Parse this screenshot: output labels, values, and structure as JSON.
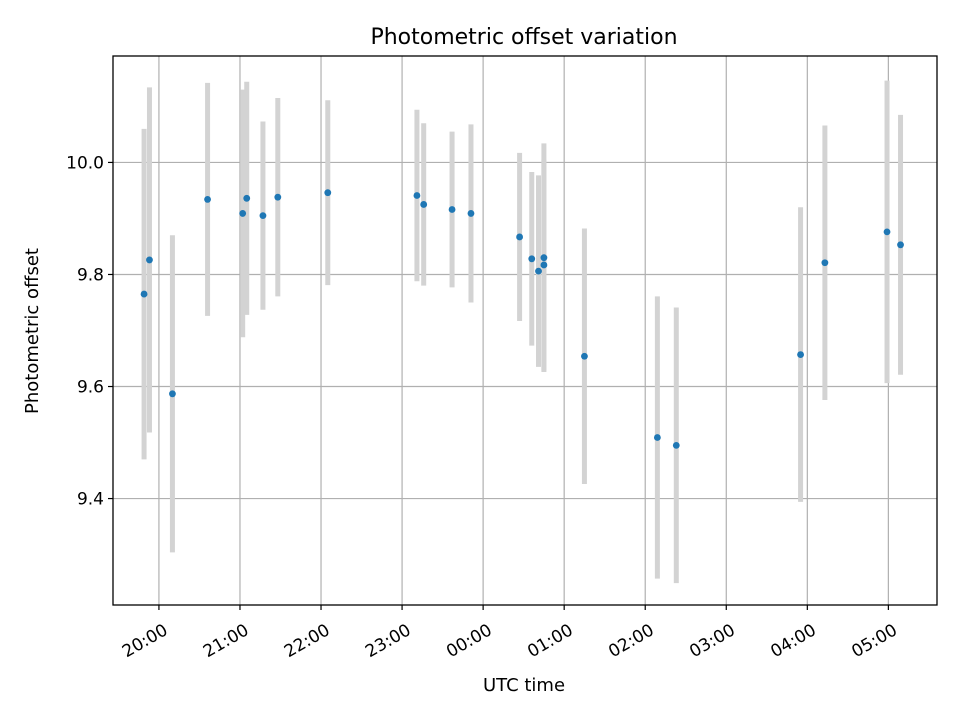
{
  "chart_data": {
    "type": "scatter",
    "title": "Photometric offset variation",
    "xlabel": "UTC time",
    "ylabel": "Photometric offset",
    "x_axis_type": "time",
    "x_start_date": "2000-01-01",
    "xlim": [
      "19:26",
      "05:36 +1d"
    ],
    "ylim": [
      9.21,
      10.19
    ],
    "grid": true,
    "legend": "none",
    "colors": {
      "marker": "#1f77b4",
      "errorbar": "#d3d3d3"
    },
    "x_ticks": [
      "20:00",
      "21:00",
      "22:00",
      "23:00",
      "00:00",
      "01:00",
      "02:00",
      "03:00",
      "04:00",
      "05:00"
    ],
    "y_ticks": [
      "9.4",
      "9.6",
      "9.8",
      "10.0"
    ],
    "points": [
      {
        "time": "19:49",
        "y": 9.765,
        "err": 0.295
      },
      {
        "time": "19:53",
        "y": 9.826,
        "err": 0.308
      },
      {
        "time": "20:10",
        "y": 9.587,
        "err": 0.283
      },
      {
        "time": "20:36",
        "y": 9.934,
        "err": 0.208
      },
      {
        "time": "21:02",
        "y": 9.909,
        "err": 0.221
      },
      {
        "time": "21:05",
        "y": 9.936,
        "err": 0.208
      },
      {
        "time": "21:17",
        "y": 9.905,
        "err": 0.168
      },
      {
        "time": "21:28",
        "y": 9.938,
        "err": 0.177
      },
      {
        "time": "22:05",
        "y": 9.946,
        "err": 0.165
      },
      {
        "time": "23:11",
        "y": 9.941,
        "err": 0.153
      },
      {
        "time": "23:16",
        "y": 9.925,
        "err": 0.145
      },
      {
        "time": "23:37",
        "y": 9.916,
        "err": 0.139
      },
      {
        "time": "23:51",
        "y": 9.909,
        "err": 0.159
      },
      {
        "time": "00:27",
        "y": 9.867,
        "err": 0.15
      },
      {
        "time": "00:36",
        "y": 9.828,
        "err": 0.155
      },
      {
        "time": "00:41",
        "y": 9.806,
        "err": 0.171
      },
      {
        "time": "00:45",
        "y": 9.817,
        "err": 0.188
      },
      {
        "time": "00:45",
        "y": 9.83,
        "err": 0.204
      },
      {
        "time": "01:15",
        "y": 9.654,
        "err": 0.228
      },
      {
        "time": "02:09",
        "y": 9.509,
        "err": 0.252
      },
      {
        "time": "02:23",
        "y": 9.495,
        "err": 0.246
      },
      {
        "time": "03:55",
        "y": 9.657,
        "err": 0.263
      },
      {
        "time": "04:13",
        "y": 9.821,
        "err": 0.245
      },
      {
        "time": "04:59",
        "y": 9.876,
        "err": 0.27
      },
      {
        "time": "05:09",
        "y": 9.853,
        "err": 0.232
      }
    ]
  }
}
